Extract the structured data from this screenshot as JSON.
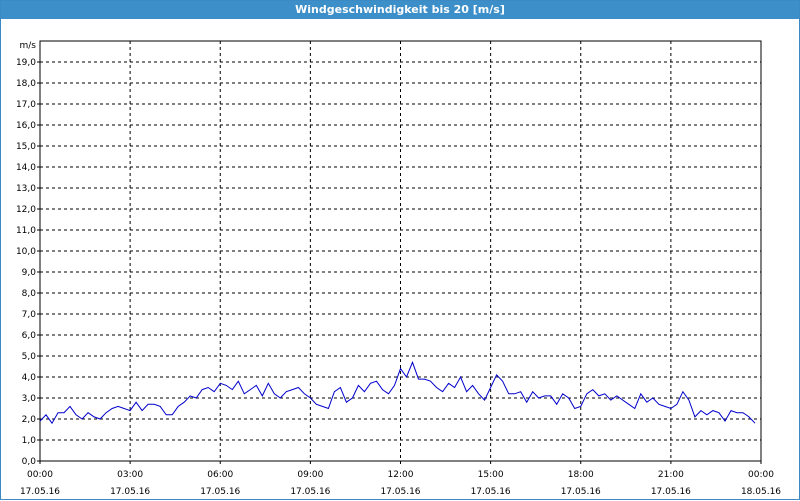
{
  "window": {
    "title": "Windgeschwindigkeit bis 20 [m/s]"
  },
  "chart_data": {
    "type": "line",
    "title": "Windgeschwindigkeit bis 20 [m/s]",
    "ylabel": "m/s",
    "xlabel": "",
    "ylim": [
      0,
      20
    ],
    "xlim_hours": [
      0,
      24
    ],
    "grid": true,
    "y_ticks": [
      "0,0",
      "1,0",
      "2,0",
      "3,0",
      "4,0",
      "5,0",
      "6,0",
      "7,0",
      "8,0",
      "9,0",
      "10,0",
      "11,0",
      "12,0",
      "13,0",
      "14,0",
      "15,0",
      "16,0",
      "17,0",
      "18,0",
      "19,0"
    ],
    "x_ticks": [
      {
        "time": "00:00",
        "date": "17.05.16"
      },
      {
        "time": "03:00",
        "date": "17.05.16"
      },
      {
        "time": "06:00",
        "date": "17.05.16"
      },
      {
        "time": "09:00",
        "date": "17.05.16"
      },
      {
        "time": "12:00",
        "date": "17.05.16"
      },
      {
        "time": "15:00",
        "date": "17.05.16"
      },
      {
        "time": "18:00",
        "date": "17.05.16"
      },
      {
        "time": "21:00",
        "date": "17.05.16"
      },
      {
        "time": "00:00",
        "date": "18.05.16"
      }
    ],
    "line_color": "#0000cc",
    "series": [
      {
        "x_hours": [
          0,
          0.2,
          0.4,
          0.6,
          0.8,
          1,
          1.2,
          1.4,
          1.6,
          1.8,
          2,
          2.2,
          2.4,
          2.6,
          2.8,
          3,
          3.2,
          3.4,
          3.6,
          3.8,
          4,
          4.2,
          4.4,
          4.6,
          4.8,
          5,
          5.2,
          5.4,
          5.6,
          5.8,
          6,
          6.2,
          6.4,
          6.6,
          6.8,
          7,
          7.2,
          7.4,
          7.6,
          7.8,
          8,
          8.2,
          8.4,
          8.6,
          8.8,
          9,
          9.2,
          9.4,
          9.6,
          9.8,
          10,
          10.2,
          10.4,
          10.6,
          10.8,
          11,
          11.2,
          11.4,
          11.6,
          11.8,
          12,
          12.2,
          12.4,
          12.6,
          12.8,
          13,
          13.2,
          13.4,
          13.6,
          13.8,
          14,
          14.2,
          14.4,
          14.6,
          14.8,
          15,
          15.2,
          15.4,
          15.6,
          15.8,
          16,
          16.2,
          16.4,
          16.6,
          16.8,
          17,
          17.2,
          17.4,
          17.6,
          17.8,
          18,
          18.2,
          18.4,
          18.6,
          18.8,
          19,
          19.2,
          19.4,
          19.6,
          19.8,
          20,
          20.2,
          20.4,
          20.6,
          20.8,
          21,
          21.2,
          21.4,
          21.6,
          21.8,
          22,
          22.2,
          22.4,
          22.6,
          22.8,
          23,
          23.2,
          23.4,
          23.6,
          23.8
        ],
        "values": [
          1.9,
          2.2,
          1.8,
          2.3,
          2.3,
          2.6,
          2.2,
          2.0,
          2.3,
          2.1,
          2.0,
          2.3,
          2.5,
          2.6,
          2.5,
          2.4,
          2.8,
          2.4,
          2.7,
          2.7,
          2.6,
          2.2,
          2.2,
          2.6,
          2.8,
          3.1,
          3.0,
          3.4,
          3.5,
          3.3,
          3.7,
          3.6,
          3.4,
          3.8,
          3.2,
          3.4,
          3.6,
          3.1,
          3.7,
          3.2,
          3.0,
          3.3,
          3.4,
          3.5,
          3.2,
          3.0,
          2.7,
          2.6,
          2.5,
          3.3,
          3.5,
          2.8,
          3.0,
          3.6,
          3.3,
          3.7,
          3.8,
          3.4,
          3.2,
          3.6,
          4.4,
          4.0,
          4.7,
          3.9,
          3.9,
          3.8,
          3.5,
          3.3,
          3.7,
          3.5,
          4.0,
          3.3,
          3.6,
          3.2,
          2.9,
          3.5,
          4.1,
          3.8,
          3.2,
          3.2,
          3.3,
          2.8,
          3.3,
          3.0,
          3.1,
          3.1,
          2.7,
          3.2,
          3.0,
          2.5,
          2.6,
          3.2,
          3.4,
          3.1,
          3.2,
          2.9,
          3.1,
          2.9,
          2.7,
          2.5,
          3.2,
          2.8,
          3.0,
          2.7,
          2.6,
          2.5,
          2.7,
          3.3,
          2.9,
          2.1,
          2.4,
          2.2,
          2.4,
          2.3,
          1.9,
          2.4,
          2.3,
          2.3,
          2.1,
          1.8
        ]
      }
    ]
  }
}
